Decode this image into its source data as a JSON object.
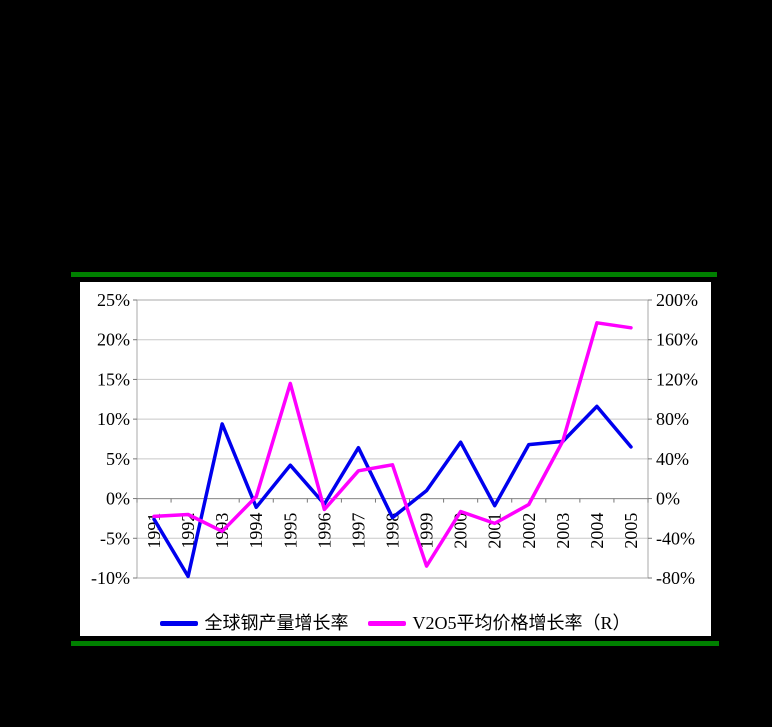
{
  "colors": {
    "background": "#000000",
    "panel_bg": "#ffffff",
    "divider_green": "#008000",
    "grid": "#c8c8c8",
    "plot_border": "#a8a8a8",
    "axis_line": "#8c8c8c",
    "tick": "#777777",
    "text": "#000000"
  },
  "chart_data": {
    "type": "line",
    "categories": [
      "1991",
      "1992",
      "1993",
      "1994",
      "1995",
      "1996",
      "1997",
      "1998",
      "1999",
      "2000",
      "2001",
      "2002",
      "2003",
      "2004",
      "2005"
    ],
    "series": [
      {
        "name": "全球钢产量增长率",
        "axis": "left",
        "color": "#0000ee",
        "values": [
          -2.6,
          -9.8,
          9.4,
          -1.1,
          4.2,
          -0.7,
          6.4,
          -2.4,
          1.0,
          7.1,
          -0.9,
          6.8,
          7.2,
          11.6,
          6.5
        ]
      },
      {
        "name": "V2O5平均价格增长率（R）",
        "axis": "right",
        "color": "#ff00ff",
        "values": [
          -18,
          -16,
          -33,
          2,
          116,
          -11,
          28,
          34,
          -68,
          -13,
          -25,
          -6,
          58,
          177,
          172
        ]
      }
    ],
    "left_axis": {
      "min": -10,
      "max": 25,
      "step": 5,
      "tick_labels": [
        "25%",
        "20%",
        "15%",
        "10%",
        "5%",
        "0%",
        "-5%",
        "-10%"
      ]
    },
    "right_axis": {
      "min": -80,
      "max": 200,
      "step": 40,
      "tick_labels": [
        "200%",
        "160%",
        "120%",
        "80%",
        "40%",
        "0%",
        "-40%",
        "-80%"
      ]
    },
    "grid": true,
    "legend_position": "bottom",
    "title": "",
    "xlabel": "",
    "ylabel": ""
  }
}
